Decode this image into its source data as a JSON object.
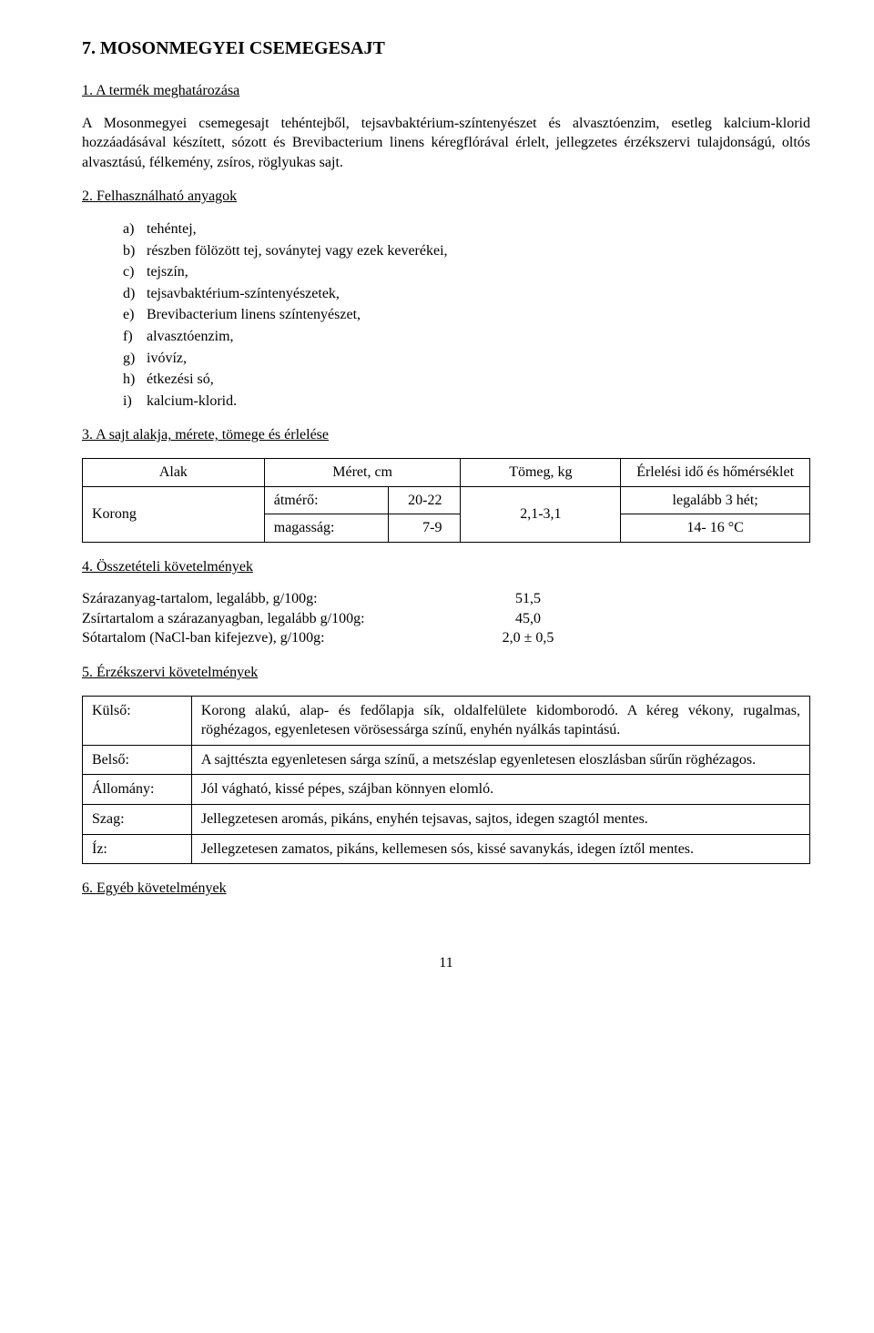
{
  "title": "7. MOSONMEGYEI CSEMEGESAJT",
  "sec1": {
    "head": "1. A termék meghatározása",
    "body": "A Mosonmegyei csemegesajt tehéntejből, tejsavbaktérium-színtenyészet és alvasztóenzim, esetleg kalcium-klorid hozzáadásával készített, sózott és Brevibacterium linens kéregflórával érlelt, jellegzetes érzékszervi tulajdonságú, oltós alvasztású, félkemény, zsíros, röglyukas sajt."
  },
  "sec2": {
    "head": "2. Felhasználható anyagok",
    "items": [
      {
        "l": "a)",
        "t": "tehéntej,"
      },
      {
        "l": "b)",
        "t": "részben fölözött tej, soványtej vagy ezek keverékei,"
      },
      {
        "l": "c)",
        "t": "tejszín,"
      },
      {
        "l": "d)",
        "t": "tejsavbaktérium-színtenyészetek,"
      },
      {
        "l": "e)",
        "t": "Brevibacterium linens színtenyészet,"
      },
      {
        "l": "f)",
        "t": "alvasztóenzim,"
      },
      {
        "l": "g)",
        "t": "ivóvíz,"
      },
      {
        "l": "h)",
        "t": "étkezési só,"
      },
      {
        "l": "i)",
        "t": "kalcium-klorid."
      }
    ]
  },
  "sec3": {
    "head": "3. A sajt alakja, mérete, tömege és érlelése",
    "table": {
      "h_alak": "Alak",
      "h_meret": "Méret, cm",
      "h_tomeg": "Tömeg, kg",
      "h_erl": "Érlelési idő és hőmérséklet",
      "shape": "Korong",
      "m1l": "átmérő:",
      "m1v": "20-22",
      "m2l": "magasság:",
      "m2v": "7-9",
      "mass": "2,1-3,1",
      "e1": "legalább 3 hét;",
      "e2": "14- 16 °C"
    }
  },
  "sec4": {
    "head": "4. Összetételi követelmények",
    "rows": [
      {
        "l": "Szárazanyag-tartalom, legalább, g/100g:",
        "v": "51,5"
      },
      {
        "l": "Zsírtartalom a szárazanyagban, legalább g/100g:",
        "v": "45,0"
      },
      {
        "l": "Sótartalom (NaCl-ban kifejezve), g/100g:",
        "v": "2,0 ± 0,5"
      }
    ]
  },
  "sec5": {
    "head": "5. Érzékszervi követelmények",
    "rows": [
      {
        "l": "Külső:",
        "d": "Korong alakú, alap- és fedőlapja sík, oldalfelülete kidomborodó. A kéreg vékony, rugalmas, röghézagos, egyenletesen vörösessárga színű, enyhén nyálkás tapintású."
      },
      {
        "l": "Belső:",
        "d": "A sajttészta egyenletesen sárga színű, a metszéslap egyenletesen eloszlásban sűrűn röghézagos."
      },
      {
        "l": "Állomány:",
        "d": "Jól vágható, kissé pépes, szájban könnyen elomló."
      },
      {
        "l": "Szag:",
        "d": "Jellegzetesen aromás, pikáns, enyhén tejsavas, sajtos, idegen szagtól mentes."
      },
      {
        "l": "Íz:",
        "d": "Jellegzetesen zamatos, pikáns, kellemesen sós, kissé savanykás, idegen íztől mentes."
      }
    ]
  },
  "sec6": {
    "head": "6. Egyéb követelmények"
  },
  "pagenum": "11"
}
